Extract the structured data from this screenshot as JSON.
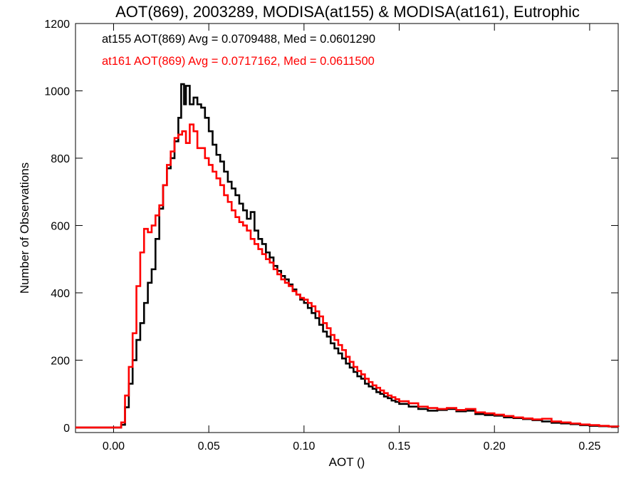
{
  "chart_data": {
    "type": "histogram",
    "title": "AOT(869), 2003289, MODISA(at155) & MODISA(at161), Eutrophic",
    "xlabel": "AOT ()",
    "ylabel": "Number of Observations",
    "xlim": [
      -0.02,
      0.265
    ],
    "ylim": [
      -15,
      1200
    ],
    "xticks": [
      0.0,
      0.05,
      0.1,
      0.15,
      0.2,
      0.25
    ],
    "xtick_labels": [
      "0.00",
      "0.05",
      "0.10",
      "0.15",
      "0.20",
      "0.25"
    ],
    "yticks": [
      0,
      200,
      400,
      600,
      800,
      1000,
      1200
    ],
    "ytick_labels": [
      "0",
      "200",
      "400",
      "600",
      "800",
      "1000",
      "1200"
    ],
    "grid": false,
    "legend": "top-left",
    "series": [
      {
        "name": "at155",
        "color": "#000000",
        "annotation": "at155 AOT(869) Avg = 0.0709488, Med = 0.0601290",
        "points": [
          [
            -0.02,
            0
          ],
          [
            0.002,
            0
          ],
          [
            0.004,
            8
          ],
          [
            0.006,
            60
          ],
          [
            0.008,
            130
          ],
          [
            0.01,
            200
          ],
          [
            0.012,
            260
          ],
          [
            0.014,
            310
          ],
          [
            0.016,
            370
          ],
          [
            0.018,
            430
          ],
          [
            0.02,
            470
          ],
          [
            0.022,
            560
          ],
          [
            0.024,
            650
          ],
          [
            0.026,
            720
          ],
          [
            0.028,
            770
          ],
          [
            0.03,
            800
          ],
          [
            0.032,
            850
          ],
          [
            0.034,
            920
          ],
          [
            0.0355,
            1020
          ],
          [
            0.037,
            960
          ],
          [
            0.038,
            1015
          ],
          [
            0.04,
            960
          ],
          [
            0.042,
            980
          ],
          [
            0.044,
            960
          ],
          [
            0.046,
            950
          ],
          [
            0.048,
            920
          ],
          [
            0.05,
            880
          ],
          [
            0.052,
            840
          ],
          [
            0.054,
            810
          ],
          [
            0.056,
            790
          ],
          [
            0.058,
            760
          ],
          [
            0.06,
            730
          ],
          [
            0.062,
            710
          ],
          [
            0.064,
            690
          ],
          [
            0.066,
            665
          ],
          [
            0.068,
            645
          ],
          [
            0.07,
            620
          ],
          [
            0.072,
            640
          ],
          [
            0.074,
            585
          ],
          [
            0.076,
            560
          ],
          [
            0.078,
            545
          ],
          [
            0.08,
            520
          ],
          [
            0.082,
            505
          ],
          [
            0.084,
            480
          ],
          [
            0.086,
            465
          ],
          [
            0.088,
            450
          ],
          [
            0.09,
            440
          ],
          [
            0.092,
            425
          ],
          [
            0.094,
            410
          ],
          [
            0.096,
            395
          ],
          [
            0.098,
            380
          ],
          [
            0.1,
            370
          ],
          [
            0.102,
            355
          ],
          [
            0.104,
            340
          ],
          [
            0.106,
            325
          ],
          [
            0.108,
            305
          ],
          [
            0.11,
            285
          ],
          [
            0.112,
            270
          ],
          [
            0.114,
            250
          ],
          [
            0.116,
            235
          ],
          [
            0.118,
            220
          ],
          [
            0.12,
            205
          ],
          [
            0.122,
            190
          ],
          [
            0.124,
            178
          ],
          [
            0.126,
            165
          ],
          [
            0.128,
            152
          ],
          [
            0.13,
            145
          ],
          [
            0.132,
            130
          ],
          [
            0.134,
            122
          ],
          [
            0.136,
            115
          ],
          [
            0.138,
            105
          ],
          [
            0.14,
            100
          ],
          [
            0.142,
            92
          ],
          [
            0.144,
            87
          ],
          [
            0.146,
            80
          ],
          [
            0.148,
            76
          ],
          [
            0.15,
            70
          ],
          [
            0.155,
            62
          ],
          [
            0.16,
            55
          ],
          [
            0.165,
            50
          ],
          [
            0.17,
            52
          ],
          [
            0.175,
            55
          ],
          [
            0.18,
            48
          ],
          [
            0.185,
            50
          ],
          [
            0.19,
            40
          ],
          [
            0.195,
            37
          ],
          [
            0.2,
            35
          ],
          [
            0.205,
            30
          ],
          [
            0.21,
            28
          ],
          [
            0.215,
            25
          ],
          [
            0.22,
            22
          ],
          [
            0.225,
            18
          ],
          [
            0.23,
            14
          ],
          [
            0.235,
            12
          ],
          [
            0.24,
            10
          ],
          [
            0.245,
            7
          ],
          [
            0.25,
            5
          ],
          [
            0.255,
            4
          ],
          [
            0.26,
            3
          ],
          [
            0.265,
            2
          ]
        ]
      },
      {
        "name": "at161",
        "color": "#ff0000",
        "annotation": "at161 AOT(869) Avg = 0.0717162, Med = 0.0611500",
        "points": [
          [
            -0.02,
            0
          ],
          [
            0.002,
            0
          ],
          [
            0.004,
            15
          ],
          [
            0.006,
            95
          ],
          [
            0.008,
            180
          ],
          [
            0.01,
            280
          ],
          [
            0.012,
            420
          ],
          [
            0.014,
            520
          ],
          [
            0.016,
            590
          ],
          [
            0.018,
            580
          ],
          [
            0.02,
            600
          ],
          [
            0.022,
            630
          ],
          [
            0.024,
            660
          ],
          [
            0.026,
            720
          ],
          [
            0.028,
            780
          ],
          [
            0.03,
            820
          ],
          [
            0.032,
            860
          ],
          [
            0.034,
            870
          ],
          [
            0.036,
            880
          ],
          [
            0.038,
            845
          ],
          [
            0.04,
            900
          ],
          [
            0.042,
            880
          ],
          [
            0.044,
            830
          ],
          [
            0.046,
            830
          ],
          [
            0.048,
            800
          ],
          [
            0.05,
            780
          ],
          [
            0.052,
            760
          ],
          [
            0.054,
            740
          ],
          [
            0.056,
            720
          ],
          [
            0.058,
            690
          ],
          [
            0.06,
            670
          ],
          [
            0.062,
            645
          ],
          [
            0.064,
            625
          ],
          [
            0.066,
            610
          ],
          [
            0.068,
            600
          ],
          [
            0.07,
            585
          ],
          [
            0.072,
            560
          ],
          [
            0.074,
            545
          ],
          [
            0.076,
            530
          ],
          [
            0.078,
            515
          ],
          [
            0.08,
            500
          ],
          [
            0.082,
            490
          ],
          [
            0.084,
            470
          ],
          [
            0.086,
            455
          ],
          [
            0.088,
            440
          ],
          [
            0.09,
            430
          ],
          [
            0.092,
            420
          ],
          [
            0.094,
            405
          ],
          [
            0.096,
            395
          ],
          [
            0.098,
            385
          ],
          [
            0.1,
            380
          ],
          [
            0.102,
            370
          ],
          [
            0.104,
            360
          ],
          [
            0.106,
            345
          ],
          [
            0.108,
            330
          ],
          [
            0.11,
            310
          ],
          [
            0.112,
            295
          ],
          [
            0.114,
            275
          ],
          [
            0.116,
            260
          ],
          [
            0.118,
            245
          ],
          [
            0.12,
            230
          ],
          [
            0.122,
            210
          ],
          [
            0.124,
            195
          ],
          [
            0.126,
            180
          ],
          [
            0.128,
            168
          ],
          [
            0.13,
            158
          ],
          [
            0.132,
            145
          ],
          [
            0.134,
            135
          ],
          [
            0.136,
            125
          ],
          [
            0.138,
            118
          ],
          [
            0.14,
            110
          ],
          [
            0.142,
            102
          ],
          [
            0.144,
            95
          ],
          [
            0.146,
            90
          ],
          [
            0.148,
            84
          ],
          [
            0.15,
            78
          ],
          [
            0.155,
            72
          ],
          [
            0.16,
            62
          ],
          [
            0.165,
            58
          ],
          [
            0.17,
            55
          ],
          [
            0.175,
            58
          ],
          [
            0.18,
            52
          ],
          [
            0.185,
            55
          ],
          [
            0.19,
            45
          ],
          [
            0.195,
            42
          ],
          [
            0.2,
            38
          ],
          [
            0.205,
            34
          ],
          [
            0.21,
            30
          ],
          [
            0.215,
            27
          ],
          [
            0.22,
            24
          ],
          [
            0.225,
            26
          ],
          [
            0.23,
            18
          ],
          [
            0.235,
            15
          ],
          [
            0.24,
            12
          ],
          [
            0.245,
            9
          ],
          [
            0.25,
            7
          ],
          [
            0.255,
            5
          ],
          [
            0.26,
            3
          ],
          [
            0.265,
            2
          ]
        ]
      }
    ]
  }
}
